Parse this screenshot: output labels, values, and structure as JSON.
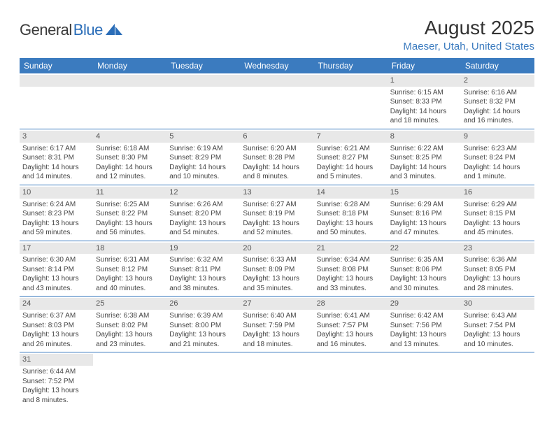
{
  "logo": {
    "dark": "General",
    "blue": "Blue"
  },
  "title": "August 2025",
  "location": "Maeser, Utah, United States",
  "colors": {
    "header_bg": "#3b7bbf",
    "header_text": "#ffffff",
    "day_bg": "#e8e8e8",
    "text": "#444444",
    "accent": "#3b7bbf"
  },
  "weekdays": [
    "Sunday",
    "Monday",
    "Tuesday",
    "Wednesday",
    "Thursday",
    "Friday",
    "Saturday"
  ],
  "weeks": [
    [
      null,
      null,
      null,
      null,
      null,
      {
        "n": "1",
        "sr": "Sunrise: 6:15 AM",
        "ss": "Sunset: 8:33 PM",
        "d1": "Daylight: 14 hours",
        "d2": "and 18 minutes."
      },
      {
        "n": "2",
        "sr": "Sunrise: 6:16 AM",
        "ss": "Sunset: 8:32 PM",
        "d1": "Daylight: 14 hours",
        "d2": "and 16 minutes."
      }
    ],
    [
      {
        "n": "3",
        "sr": "Sunrise: 6:17 AM",
        "ss": "Sunset: 8:31 PM",
        "d1": "Daylight: 14 hours",
        "d2": "and 14 minutes."
      },
      {
        "n": "4",
        "sr": "Sunrise: 6:18 AM",
        "ss": "Sunset: 8:30 PM",
        "d1": "Daylight: 14 hours",
        "d2": "and 12 minutes."
      },
      {
        "n": "5",
        "sr": "Sunrise: 6:19 AM",
        "ss": "Sunset: 8:29 PM",
        "d1": "Daylight: 14 hours",
        "d2": "and 10 minutes."
      },
      {
        "n": "6",
        "sr": "Sunrise: 6:20 AM",
        "ss": "Sunset: 8:28 PM",
        "d1": "Daylight: 14 hours",
        "d2": "and 8 minutes."
      },
      {
        "n": "7",
        "sr": "Sunrise: 6:21 AM",
        "ss": "Sunset: 8:27 PM",
        "d1": "Daylight: 14 hours",
        "d2": "and 5 minutes."
      },
      {
        "n": "8",
        "sr": "Sunrise: 6:22 AM",
        "ss": "Sunset: 8:25 PM",
        "d1": "Daylight: 14 hours",
        "d2": "and 3 minutes."
      },
      {
        "n": "9",
        "sr": "Sunrise: 6:23 AM",
        "ss": "Sunset: 8:24 PM",
        "d1": "Daylight: 14 hours",
        "d2": "and 1 minute."
      }
    ],
    [
      {
        "n": "10",
        "sr": "Sunrise: 6:24 AM",
        "ss": "Sunset: 8:23 PM",
        "d1": "Daylight: 13 hours",
        "d2": "and 59 minutes."
      },
      {
        "n": "11",
        "sr": "Sunrise: 6:25 AM",
        "ss": "Sunset: 8:22 PM",
        "d1": "Daylight: 13 hours",
        "d2": "and 56 minutes."
      },
      {
        "n": "12",
        "sr": "Sunrise: 6:26 AM",
        "ss": "Sunset: 8:20 PM",
        "d1": "Daylight: 13 hours",
        "d2": "and 54 minutes."
      },
      {
        "n": "13",
        "sr": "Sunrise: 6:27 AM",
        "ss": "Sunset: 8:19 PM",
        "d1": "Daylight: 13 hours",
        "d2": "and 52 minutes."
      },
      {
        "n": "14",
        "sr": "Sunrise: 6:28 AM",
        "ss": "Sunset: 8:18 PM",
        "d1": "Daylight: 13 hours",
        "d2": "and 50 minutes."
      },
      {
        "n": "15",
        "sr": "Sunrise: 6:29 AM",
        "ss": "Sunset: 8:16 PM",
        "d1": "Daylight: 13 hours",
        "d2": "and 47 minutes."
      },
      {
        "n": "16",
        "sr": "Sunrise: 6:29 AM",
        "ss": "Sunset: 8:15 PM",
        "d1": "Daylight: 13 hours",
        "d2": "and 45 minutes."
      }
    ],
    [
      {
        "n": "17",
        "sr": "Sunrise: 6:30 AM",
        "ss": "Sunset: 8:14 PM",
        "d1": "Daylight: 13 hours",
        "d2": "and 43 minutes."
      },
      {
        "n": "18",
        "sr": "Sunrise: 6:31 AM",
        "ss": "Sunset: 8:12 PM",
        "d1": "Daylight: 13 hours",
        "d2": "and 40 minutes."
      },
      {
        "n": "19",
        "sr": "Sunrise: 6:32 AM",
        "ss": "Sunset: 8:11 PM",
        "d1": "Daylight: 13 hours",
        "d2": "and 38 minutes."
      },
      {
        "n": "20",
        "sr": "Sunrise: 6:33 AM",
        "ss": "Sunset: 8:09 PM",
        "d1": "Daylight: 13 hours",
        "d2": "and 35 minutes."
      },
      {
        "n": "21",
        "sr": "Sunrise: 6:34 AM",
        "ss": "Sunset: 8:08 PM",
        "d1": "Daylight: 13 hours",
        "d2": "and 33 minutes."
      },
      {
        "n": "22",
        "sr": "Sunrise: 6:35 AM",
        "ss": "Sunset: 8:06 PM",
        "d1": "Daylight: 13 hours",
        "d2": "and 30 minutes."
      },
      {
        "n": "23",
        "sr": "Sunrise: 6:36 AM",
        "ss": "Sunset: 8:05 PM",
        "d1": "Daylight: 13 hours",
        "d2": "and 28 minutes."
      }
    ],
    [
      {
        "n": "24",
        "sr": "Sunrise: 6:37 AM",
        "ss": "Sunset: 8:03 PM",
        "d1": "Daylight: 13 hours",
        "d2": "and 26 minutes."
      },
      {
        "n": "25",
        "sr": "Sunrise: 6:38 AM",
        "ss": "Sunset: 8:02 PM",
        "d1": "Daylight: 13 hours",
        "d2": "and 23 minutes."
      },
      {
        "n": "26",
        "sr": "Sunrise: 6:39 AM",
        "ss": "Sunset: 8:00 PM",
        "d1": "Daylight: 13 hours",
        "d2": "and 21 minutes."
      },
      {
        "n": "27",
        "sr": "Sunrise: 6:40 AM",
        "ss": "Sunset: 7:59 PM",
        "d1": "Daylight: 13 hours",
        "d2": "and 18 minutes."
      },
      {
        "n": "28",
        "sr": "Sunrise: 6:41 AM",
        "ss": "Sunset: 7:57 PM",
        "d1": "Daylight: 13 hours",
        "d2": "and 16 minutes."
      },
      {
        "n": "29",
        "sr": "Sunrise: 6:42 AM",
        "ss": "Sunset: 7:56 PM",
        "d1": "Daylight: 13 hours",
        "d2": "and 13 minutes."
      },
      {
        "n": "30",
        "sr": "Sunrise: 6:43 AM",
        "ss": "Sunset: 7:54 PM",
        "d1": "Daylight: 13 hours",
        "d2": "and 10 minutes."
      }
    ],
    [
      {
        "n": "31",
        "sr": "Sunrise: 6:44 AM",
        "ss": "Sunset: 7:52 PM",
        "d1": "Daylight: 13 hours",
        "d2": "and 8 minutes."
      },
      null,
      null,
      null,
      null,
      null,
      null
    ]
  ]
}
